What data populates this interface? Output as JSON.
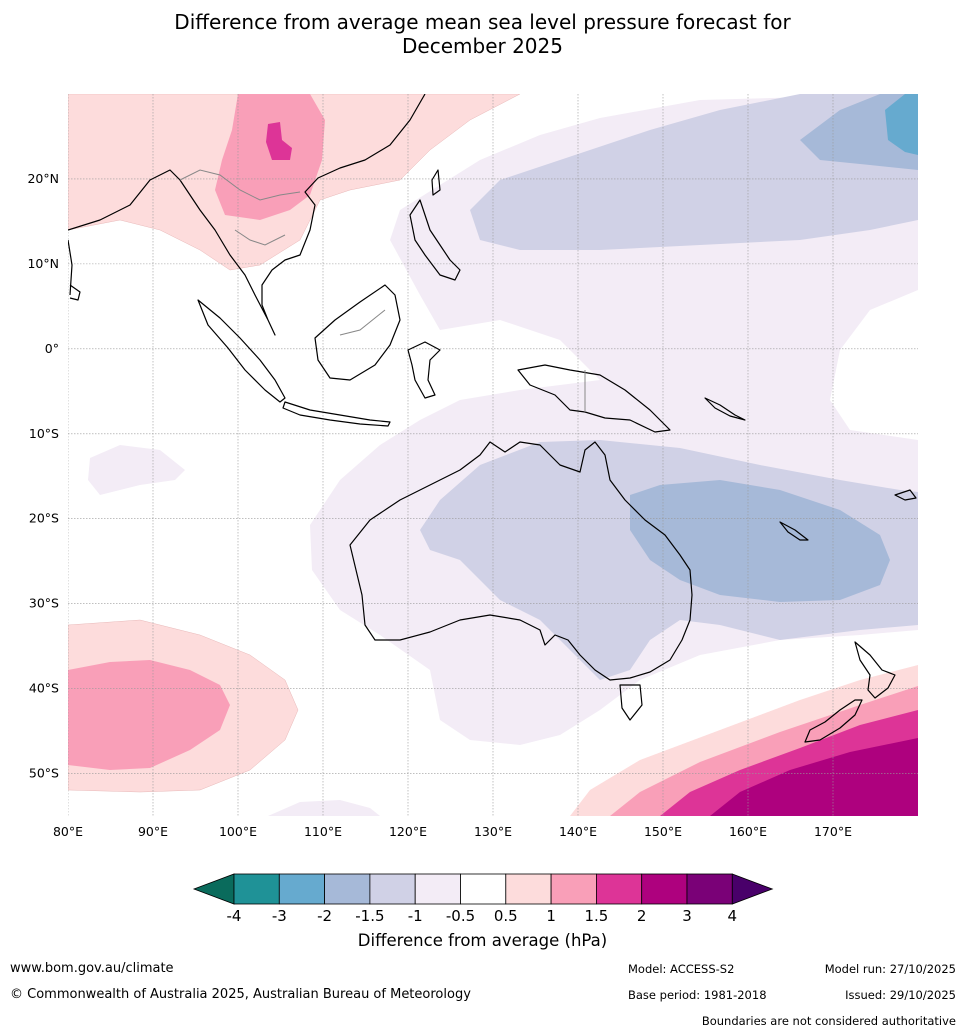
{
  "title": {
    "line1": "Difference from average mean sea level pressure forecast for",
    "line2": "December 2025"
  },
  "axes": {
    "lon_ticks": [
      "80°E",
      "90°E",
      "100°E",
      "110°E",
      "120°E",
      "130°E",
      "140°E",
      "150°E",
      "160°E",
      "170°E"
    ],
    "lon_values": [
      80,
      90,
      100,
      110,
      120,
      130,
      140,
      150,
      160,
      170
    ],
    "lat_ticks": [
      "20°N",
      "10°N",
      "0°",
      "10°S",
      "20°S",
      "30°S",
      "40°S",
      "50°S"
    ],
    "lat_values": [
      20,
      10,
      0,
      -10,
      -20,
      -30,
      -40,
      -50
    ],
    "lon_range": [
      80,
      180
    ],
    "lat_range": [
      -55,
      30
    ]
  },
  "colorbar": {
    "title": "Difference from average (hPa)",
    "tick_labels": [
      "-4",
      "-3",
      "-2",
      "-1.5",
      "-1",
      "-0.5",
      "0.5",
      "1",
      "1.5",
      "2",
      "3",
      "4"
    ],
    "colors": [
      "#0a6b5c",
      "#1f9297",
      "#66aacf",
      "#a6b9d8",
      "#d0d1e6",
      "#f3ecf6",
      "#ffffff",
      "#fddcdc",
      "#f99fb8",
      "#dd3497",
      "#ae017e",
      "#7a0177",
      "#49006a"
    ]
  },
  "footer": {
    "website": "www.bom.gov.au/climate",
    "copyright": "© Commonwealth of Australia 2025, Australian Bureau of Meteorology",
    "model": "Model: ACCESS-S2",
    "base_period": "Base period: 1981-2018",
    "model_run": "Model run: 27/10/2025",
    "issued": "Issued: 29/10/2025",
    "disclaimer": "Boundaries are not considered authoritative"
  }
}
